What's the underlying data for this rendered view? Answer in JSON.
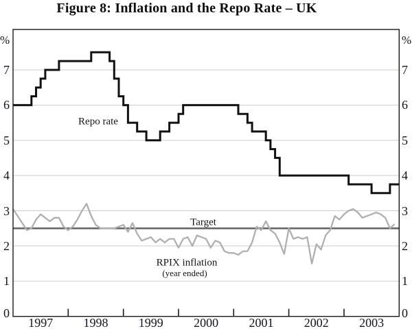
{
  "title": "Figure 8: Inflation and the Repo Rate – UK",
  "chart_data": {
    "type": "line",
    "title": "Figure 8: Inflation and the Repo Rate – UK",
    "x_unit": "month",
    "x_start": "1997-01",
    "x_end": "2003-12",
    "x_tick_labels": [
      "1997",
      "1998",
      "1999",
      "2000",
      "2001",
      "2002",
      "2003"
    ],
    "y_axis_unit": "%",
    "y_tick_labels": [
      "7",
      "6",
      "5",
      "4",
      "3",
      "2",
      "1",
      "0"
    ],
    "y_ticks": [
      7,
      6,
      5,
      4,
      3,
      2,
      1,
      0
    ],
    "ylim": [
      0,
      8.15
    ],
    "grid": "horizontal-light",
    "legend": "inline-annotations",
    "series": [
      {
        "name": "Repo rate",
        "style": "step",
        "color": "#111111",
        "stroke_width": 3,
        "monthly_values": [
          6,
          6,
          6,
          6,
          6.25,
          6.5,
          6.75,
          7,
          7,
          7,
          7.25,
          7.25,
          7.25,
          7.25,
          7.25,
          7.25,
          7.25,
          7.5,
          7.5,
          7.5,
          7.5,
          7.25,
          6.75,
          6.25,
          6,
          5.5,
          5.5,
          5.25,
          5.25,
          5,
          5,
          5,
          5.25,
          5.25,
          5.5,
          5.5,
          5.75,
          6,
          6,
          6,
          6,
          6,
          6,
          6,
          6,
          6,
          6,
          6,
          6,
          5.75,
          5.75,
          5.5,
          5.25,
          5.25,
          5.25,
          5,
          4.75,
          4.5,
          4,
          4,
          4,
          4,
          4,
          4,
          4,
          4,
          4,
          4,
          4,
          4,
          4,
          4,
          4,
          3.75,
          3.75,
          3.75,
          3.75,
          3.75,
          3.5,
          3.5,
          3.5,
          3.5,
          3.75,
          3.75
        ]
      },
      {
        "name": "RPIX inflation (year ended)",
        "style": "line",
        "color": "#afafaf",
        "stroke_width": 2.3,
        "monthly_values": [
          3.05,
          2.85,
          2.65,
          2.45,
          2.5,
          2.75,
          2.9,
          2.8,
          2.7,
          2.8,
          2.8,
          2.55,
          2.45,
          2.55,
          2.75,
          3,
          3.2,
          2.85,
          2.6,
          2.5,
          2.5,
          2.5,
          2.5,
          2.55,
          2.6,
          2.4,
          2.65,
          2.35,
          2.15,
          2.2,
          2.25,
          2.1,
          2.2,
          2.1,
          2.2,
          2.2,
          1.95,
          2.2,
          2.25,
          2,
          2.3,
          2.25,
          2.2,
          1.95,
          2.15,
          2.1,
          1.85,
          1.8,
          1.8,
          1.75,
          1.85,
          1.85,
          2.1,
          2.55,
          2.45,
          2.7,
          2.45,
          2.35,
          2.1,
          1.77,
          2.5,
          2.2,
          2.25,
          2.2,
          2.25,
          1.5,
          2.05,
          1.9,
          2.3,
          2.45,
          2.85,
          2.75,
          2.9,
          3,
          3.05,
          2.95,
          2.8,
          2.85,
          2.9,
          2.95,
          2.9,
          2.8,
          2.5,
          2.62
        ]
      },
      {
        "name": "Target",
        "style": "hline",
        "color": "#666666",
        "stroke_width": 2.6,
        "value": 2.5
      }
    ],
    "colors": {
      "gridline": "#cbcbcb",
      "axis_border": "#1a1a1a",
      "tick": "#1a1a1a"
    }
  },
  "labels": {
    "percent": "%",
    "repo_rate": "Repo rate",
    "target": "Target",
    "rpix_line1": "RPIX inflation",
    "rpix_line2": "(year ended)"
  }
}
